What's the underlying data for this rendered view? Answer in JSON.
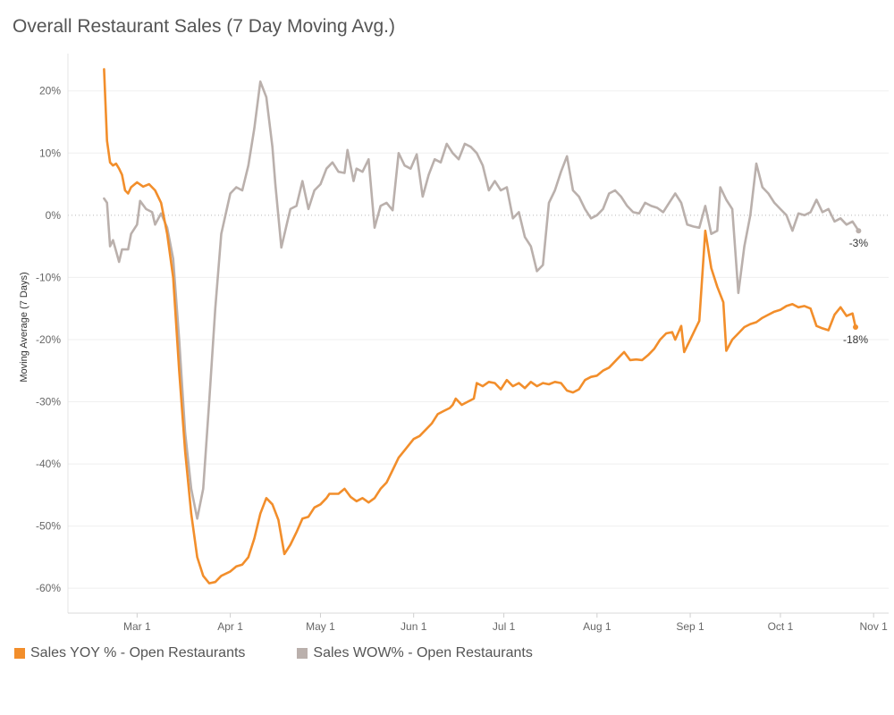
{
  "chart_data": {
    "type": "line",
    "title": "Overall Restaurant Sales (7 Day Moving Avg.)",
    "ylabel": "Moving Average (7 Days)",
    "xlabel": "",
    "ylim": [
      -64,
      26
    ],
    "y_ticks": [
      "20%",
      "10%",
      "0%",
      "-10%",
      "-20%",
      "-30%",
      "-40%",
      "-50%",
      "-60%"
    ],
    "x_tick_labels": [
      "Mar 1",
      "Apr 1",
      "May 1",
      "Jun 1",
      "Jul 1",
      "Aug 1",
      "Sep 1",
      "Oct 1",
      "Nov 1"
    ],
    "x_tick_dates": [
      "2020-03-01",
      "2020-04-01",
      "2020-05-01",
      "2020-06-01",
      "2020-07-01",
      "2020-08-01",
      "2020-09-01",
      "2020-10-01",
      "2020-11-01"
    ],
    "xlim": [
      "2020-02-07",
      "2020-11-06"
    ],
    "zero_line": "dotted",
    "series": [
      {
        "name": "Sales YOY % - Open Restaurants",
        "color": "#F28E2B",
        "end_label": "-18%",
        "points": [
          [
            "2020-02-19",
            23.5
          ],
          [
            "2020-02-20",
            12
          ],
          [
            "2020-02-21",
            8.5
          ],
          [
            "2020-02-22",
            8
          ],
          [
            "2020-02-23",
            8.3
          ],
          [
            "2020-02-24",
            7.5
          ],
          [
            "2020-02-25",
            6.5
          ],
          [
            "2020-02-26",
            4
          ],
          [
            "2020-02-27",
            3.5
          ],
          [
            "2020-02-28",
            4.5
          ],
          [
            "2020-03-01",
            5.3
          ],
          [
            "2020-03-03",
            4.6
          ],
          [
            "2020-03-05",
            5
          ],
          [
            "2020-03-07",
            4
          ],
          [
            "2020-03-09",
            2
          ],
          [
            "2020-03-11",
            -3
          ],
          [
            "2020-03-13",
            -10
          ],
          [
            "2020-03-15",
            -25
          ],
          [
            "2020-03-17",
            -38
          ],
          [
            "2020-03-19",
            -48
          ],
          [
            "2020-03-21",
            -55
          ],
          [
            "2020-03-23",
            -58
          ],
          [
            "2020-03-25",
            -59.2
          ],
          [
            "2020-03-27",
            -59
          ],
          [
            "2020-03-29",
            -58
          ],
          [
            "2020-04-01",
            -57.3
          ],
          [
            "2020-04-03",
            -56.5
          ],
          [
            "2020-04-05",
            -56.2
          ],
          [
            "2020-04-07",
            -55
          ],
          [
            "2020-04-09",
            -52
          ],
          [
            "2020-04-11",
            -48
          ],
          [
            "2020-04-13",
            -45.5
          ],
          [
            "2020-04-15",
            -46.5
          ],
          [
            "2020-04-17",
            -49
          ],
          [
            "2020-04-19",
            -54.5
          ],
          [
            "2020-04-21",
            -53
          ],
          [
            "2020-04-23",
            -51
          ],
          [
            "2020-04-25",
            -48.8
          ],
          [
            "2020-04-27",
            -48.5
          ],
          [
            "2020-04-29",
            -47
          ],
          [
            "2020-05-01",
            -46.5
          ],
          [
            "2020-05-03",
            -45.5
          ],
          [
            "2020-05-04",
            -44.8
          ],
          [
            "2020-05-07",
            -44.8
          ],
          [
            "2020-05-09",
            -44
          ],
          [
            "2020-05-11",
            -45.3
          ],
          [
            "2020-05-13",
            -46
          ],
          [
            "2020-05-15",
            -45.5
          ],
          [
            "2020-05-17",
            -46.2
          ],
          [
            "2020-05-19",
            -45.5
          ],
          [
            "2020-05-21",
            -44
          ],
          [
            "2020-05-23",
            -43
          ],
          [
            "2020-05-25",
            -41
          ],
          [
            "2020-05-27",
            -39
          ],
          [
            "2020-05-29",
            -37.8
          ],
          [
            "2020-06-01",
            -36
          ],
          [
            "2020-06-03",
            -35.5
          ],
          [
            "2020-06-05",
            -34.5
          ],
          [
            "2020-06-07",
            -33.5
          ],
          [
            "2020-06-09",
            -32
          ],
          [
            "2020-06-11",
            -31.5
          ],
          [
            "2020-06-13",
            -31
          ],
          [
            "2020-06-14",
            -30.5
          ],
          [
            "2020-06-15",
            -29.5
          ],
          [
            "2020-06-17",
            -30.5
          ],
          [
            "2020-06-19",
            -30
          ],
          [
            "2020-06-21",
            -29.5
          ],
          [
            "2020-06-22",
            -27
          ],
          [
            "2020-06-24",
            -27.5
          ],
          [
            "2020-06-26",
            -26.8
          ],
          [
            "2020-06-28",
            -27
          ],
          [
            "2020-06-30",
            -28
          ],
          [
            "2020-07-02",
            -26.5
          ],
          [
            "2020-07-04",
            -27.5
          ],
          [
            "2020-07-06",
            -27
          ],
          [
            "2020-07-08",
            -27.8
          ],
          [
            "2020-07-10",
            -26.8
          ],
          [
            "2020-07-12",
            -27.5
          ],
          [
            "2020-07-14",
            -27
          ],
          [
            "2020-07-16",
            -27.2
          ],
          [
            "2020-07-18",
            -26.8
          ],
          [
            "2020-07-20",
            -27
          ],
          [
            "2020-07-22",
            -28.2
          ],
          [
            "2020-07-24",
            -28.5
          ],
          [
            "2020-07-26",
            -28
          ],
          [
            "2020-07-28",
            -26.5
          ],
          [
            "2020-07-30",
            -26
          ],
          [
            "2020-08-01",
            -25.8
          ],
          [
            "2020-08-03",
            -25
          ],
          [
            "2020-08-05",
            -24.5
          ],
          [
            "2020-08-07",
            -23.5
          ],
          [
            "2020-08-09",
            -22.5
          ],
          [
            "2020-08-10",
            -22
          ],
          [
            "2020-08-12",
            -23.3
          ],
          [
            "2020-08-14",
            -23.2
          ],
          [
            "2020-08-16",
            -23.3
          ],
          [
            "2020-08-18",
            -22.5
          ],
          [
            "2020-08-20",
            -21.5
          ],
          [
            "2020-08-22",
            -20
          ],
          [
            "2020-08-24",
            -19
          ],
          [
            "2020-08-26",
            -18.8
          ],
          [
            "2020-08-27",
            -20
          ],
          [
            "2020-08-29",
            -17.8
          ],
          [
            "2020-08-30",
            -22
          ],
          [
            "2020-09-01",
            -20
          ],
          [
            "2020-09-03",
            -18
          ],
          [
            "2020-09-04",
            -17
          ],
          [
            "2020-09-06",
            -2.5
          ],
          [
            "2020-09-08",
            -8.5
          ],
          [
            "2020-09-10",
            -11.5
          ],
          [
            "2020-09-12",
            -14
          ],
          [
            "2020-09-13",
            -21.8
          ],
          [
            "2020-09-15",
            -20
          ],
          [
            "2020-09-17",
            -19
          ],
          [
            "2020-09-19",
            -18
          ],
          [
            "2020-09-21",
            -17.5
          ],
          [
            "2020-09-23",
            -17.2
          ],
          [
            "2020-09-25",
            -16.5
          ],
          [
            "2020-09-27",
            -16
          ],
          [
            "2020-09-29",
            -15.5
          ],
          [
            "2020-10-01",
            -15.2
          ],
          [
            "2020-10-03",
            -14.6
          ],
          [
            "2020-10-05",
            -14.3
          ],
          [
            "2020-10-07",
            -14.8
          ],
          [
            "2020-10-09",
            -14.6
          ],
          [
            "2020-10-11",
            -15
          ],
          [
            "2020-10-13",
            -17.8
          ],
          [
            "2020-10-15",
            -18.2
          ],
          [
            "2020-10-17",
            -18.5
          ],
          [
            "2020-10-19",
            -16
          ],
          [
            "2020-10-21",
            -14.8
          ],
          [
            "2020-10-23",
            -16.2
          ],
          [
            "2020-10-25",
            -15.8
          ],
          [
            "2020-10-26",
            -18
          ]
        ]
      },
      {
        "name": "Sales WOW% - Open Restaurants",
        "color": "#BAB0AC",
        "end_label": "-3%",
        "points": [
          [
            "2020-02-19",
            2.7
          ],
          [
            "2020-02-20",
            2
          ],
          [
            "2020-02-21",
            -5
          ],
          [
            "2020-02-22",
            -4
          ],
          [
            "2020-02-24",
            -7.5
          ],
          [
            "2020-02-25",
            -5.5
          ],
          [
            "2020-02-27",
            -5.5
          ],
          [
            "2020-02-28",
            -3
          ],
          [
            "2020-03-01",
            -1.5
          ],
          [
            "2020-03-02",
            2.3
          ],
          [
            "2020-03-04",
            1
          ],
          [
            "2020-03-06",
            0.5
          ],
          [
            "2020-03-07",
            -1.5
          ],
          [
            "2020-03-09",
            0.3
          ],
          [
            "2020-03-11",
            -2
          ],
          [
            "2020-03-13",
            -7
          ],
          [
            "2020-03-15",
            -20
          ],
          [
            "2020-03-17",
            -35
          ],
          [
            "2020-03-19",
            -44
          ],
          [
            "2020-03-21",
            -48.8
          ],
          [
            "2020-03-23",
            -44
          ],
          [
            "2020-03-25",
            -30
          ],
          [
            "2020-03-27",
            -15
          ],
          [
            "2020-03-29",
            -3
          ],
          [
            "2020-04-01",
            3.5
          ],
          [
            "2020-04-03",
            4.5
          ],
          [
            "2020-04-05",
            4
          ],
          [
            "2020-04-07",
            8
          ],
          [
            "2020-04-09",
            14
          ],
          [
            "2020-04-11",
            21.5
          ],
          [
            "2020-04-13",
            19
          ],
          [
            "2020-04-15",
            11
          ],
          [
            "2020-04-16",
            5
          ],
          [
            "2020-04-18",
            -5.2
          ],
          [
            "2020-04-20",
            -1
          ],
          [
            "2020-04-21",
            1
          ],
          [
            "2020-04-23",
            1.5
          ],
          [
            "2020-04-25",
            5.5
          ],
          [
            "2020-04-27",
            1
          ],
          [
            "2020-04-29",
            4
          ],
          [
            "2020-05-01",
            5
          ],
          [
            "2020-05-03",
            7.5
          ],
          [
            "2020-05-05",
            8.5
          ],
          [
            "2020-05-07",
            7
          ],
          [
            "2020-05-09",
            6.8
          ],
          [
            "2020-05-10",
            10.5
          ],
          [
            "2020-05-12",
            5.5
          ],
          [
            "2020-05-13",
            7.5
          ],
          [
            "2020-05-15",
            7
          ],
          [
            "2020-05-17",
            9
          ],
          [
            "2020-05-19",
            -2
          ],
          [
            "2020-05-21",
            1.5
          ],
          [
            "2020-05-23",
            2
          ],
          [
            "2020-05-25",
            0.8
          ],
          [
            "2020-05-27",
            10
          ],
          [
            "2020-05-29",
            8
          ],
          [
            "2020-05-31",
            7.5
          ],
          [
            "2020-06-02",
            9.8
          ],
          [
            "2020-06-04",
            3
          ],
          [
            "2020-06-06",
            6.5
          ],
          [
            "2020-06-08",
            9
          ],
          [
            "2020-06-10",
            8.5
          ],
          [
            "2020-06-12",
            11.5
          ],
          [
            "2020-06-14",
            10
          ],
          [
            "2020-06-16",
            9
          ],
          [
            "2020-06-18",
            11.5
          ],
          [
            "2020-06-20",
            11
          ],
          [
            "2020-06-22",
            10
          ],
          [
            "2020-06-24",
            8
          ],
          [
            "2020-06-26",
            4
          ],
          [
            "2020-06-28",
            5.5
          ],
          [
            "2020-06-30",
            4
          ],
          [
            "2020-07-02",
            4.5
          ],
          [
            "2020-07-04",
            -0.5
          ],
          [
            "2020-07-06",
            0.5
          ],
          [
            "2020-07-08",
            -3.5
          ],
          [
            "2020-07-10",
            -5
          ],
          [
            "2020-07-12",
            -9
          ],
          [
            "2020-07-14",
            -8
          ],
          [
            "2020-07-16",
            2
          ],
          [
            "2020-07-18",
            4
          ],
          [
            "2020-07-20",
            7
          ],
          [
            "2020-07-22",
            9.5
          ],
          [
            "2020-07-24",
            4
          ],
          [
            "2020-07-26",
            3
          ],
          [
            "2020-07-28",
            1
          ],
          [
            "2020-07-30",
            -0.5
          ],
          [
            "2020-08-01",
            0
          ],
          [
            "2020-08-03",
            1
          ],
          [
            "2020-08-05",
            3.5
          ],
          [
            "2020-08-07",
            4
          ],
          [
            "2020-08-09",
            3
          ],
          [
            "2020-08-11",
            1.5
          ],
          [
            "2020-08-13",
            0.5
          ],
          [
            "2020-08-15",
            0.3
          ],
          [
            "2020-08-17",
            2
          ],
          [
            "2020-08-19",
            1.5
          ],
          [
            "2020-08-21",
            1.2
          ],
          [
            "2020-08-23",
            0.5
          ],
          [
            "2020-08-25",
            2
          ],
          [
            "2020-08-27",
            3.5
          ],
          [
            "2020-08-29",
            2
          ],
          [
            "2020-08-31",
            -1.5
          ],
          [
            "2020-09-02",
            -1.8
          ],
          [
            "2020-09-04",
            -2
          ],
          [
            "2020-09-06",
            1.5
          ],
          [
            "2020-09-08",
            -3
          ],
          [
            "2020-09-10",
            -2.5
          ],
          [
            "2020-09-11",
            4.5
          ],
          [
            "2020-09-13",
            2.5
          ],
          [
            "2020-09-15",
            1
          ],
          [
            "2020-09-17",
            -12.5
          ],
          [
            "2020-09-19",
            -5
          ],
          [
            "2020-09-21",
            0
          ],
          [
            "2020-09-23",
            8.3
          ],
          [
            "2020-09-25",
            4.5
          ],
          [
            "2020-09-27",
            3.5
          ],
          [
            "2020-09-29",
            2
          ],
          [
            "2020-10-01",
            1
          ],
          [
            "2020-10-03",
            0
          ],
          [
            "2020-10-05",
            -2.5
          ],
          [
            "2020-10-07",
            0.3
          ],
          [
            "2020-10-09",
            0
          ],
          [
            "2020-10-11",
            0.5
          ],
          [
            "2020-10-13",
            2.5
          ],
          [
            "2020-10-15",
            0.5
          ],
          [
            "2020-10-17",
            1
          ],
          [
            "2020-10-19",
            -1
          ],
          [
            "2020-10-21",
            -0.5
          ],
          [
            "2020-10-23",
            -1.5
          ],
          [
            "2020-10-25",
            -1
          ],
          [
            "2020-10-27",
            -2.5
          ]
        ]
      }
    ]
  }
}
